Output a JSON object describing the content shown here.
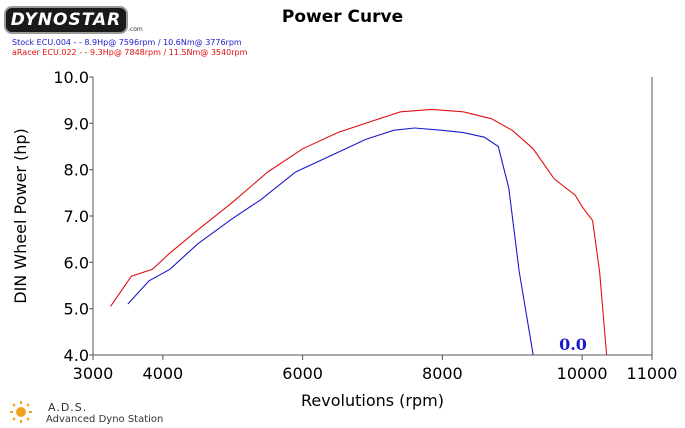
{
  "logo": {
    "brand": "DYNOSTAR",
    "suffix": ".com"
  },
  "title": "Power Curve",
  "legend": [
    {
      "text": "Stock ECU.004 -  - 8.9Hp@ 7596rpm / 10.6Nm@ 3776rpm",
      "color": "#1a1acc"
    },
    {
      "text": "aRacer ECU.022 -  - 9.3Hp@ 7848rpm / 11.5Nm@ 3540rpm",
      "color": "#e01010"
    }
  ],
  "footer": {
    "name": "A.D.S.",
    "subtitle": "Advanced Dyno Station"
  },
  "readout": {
    "value": "0.0",
    "color": "#1a1acc"
  },
  "chart_data": {
    "type": "line",
    "title": "Power Curve",
    "xlabel": "Revolutions (rpm)",
    "ylabel": "DIN Wheel Power (hp)",
    "xlim": [
      3000,
      11000
    ],
    "ylim": [
      4.0,
      10.0
    ],
    "xticks": [
      3000,
      4000,
      6000,
      8000,
      10000,
      11000
    ],
    "xtick_labels": [
      "3000",
      "4000",
      "6000",
      "8000",
      "10000",
      "11000"
    ],
    "yticks": [
      4.0,
      5.0,
      6.0,
      7.0,
      8.0,
      9.0,
      10.0
    ],
    "ytick_labels": [
      "4.0",
      "5.0",
      "6.0",
      "7.0",
      "8.0",
      "9.0",
      "10.0"
    ],
    "grid": false,
    "series": [
      {
        "name": "Stock ECU.004",
        "color": "#1a1acc",
        "x": [
          3500,
          3800,
          4100,
          4500,
          5000,
          5400,
          5900,
          6400,
          6900,
          7300,
          7600,
          8000,
          8300,
          8600,
          8800,
          8950,
          9100,
          9300
        ],
        "y": [
          5.1,
          5.6,
          5.85,
          6.4,
          6.95,
          7.35,
          7.95,
          8.3,
          8.65,
          8.85,
          8.9,
          8.85,
          8.8,
          8.7,
          8.5,
          7.6,
          5.8,
          4.0
        ]
      },
      {
        "name": "aRacer ECU.022",
        "color": "#e01010",
        "x": [
          3250,
          3550,
          3850,
          4100,
          4500,
          5000,
          5500,
          6000,
          6500,
          7000,
          7400,
          7850,
          8300,
          8700,
          9000,
          9300,
          9600,
          9900,
          10000,
          10150,
          10250,
          10350
        ],
        "y": [
          5.05,
          5.7,
          5.85,
          6.2,
          6.7,
          7.3,
          7.95,
          8.45,
          8.8,
          9.05,
          9.25,
          9.3,
          9.25,
          9.1,
          8.85,
          8.45,
          7.8,
          7.45,
          7.2,
          6.9,
          5.8,
          4.0
        ]
      }
    ]
  }
}
